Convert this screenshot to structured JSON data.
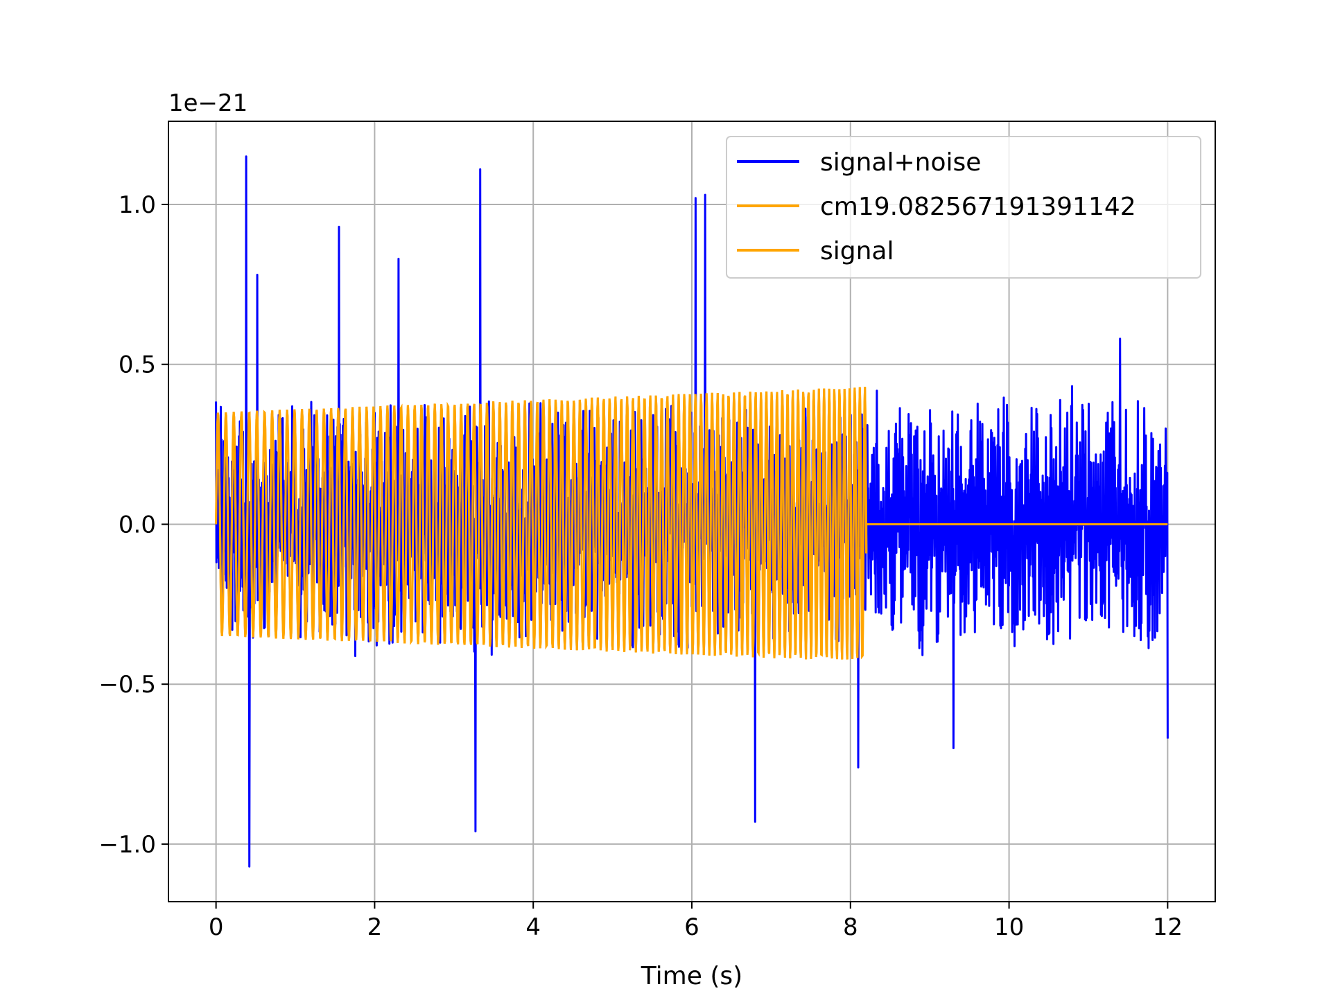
{
  "chart_data": {
    "type": "line",
    "title": "",
    "xlabel": "Time (s)",
    "ylabel": "",
    "offset_label": "1e−21",
    "xlim": [
      -0.6,
      12.6
    ],
    "ylim": [
      -1.18,
      1.26
    ],
    "x_ticks": [
      0,
      2,
      4,
      6,
      8,
      10,
      12
    ],
    "x_tick_labels": [
      "0",
      "2",
      "4",
      "6",
      "8",
      "10",
      "12"
    ],
    "y_ticks": [
      -1.0,
      -0.5,
      0.0,
      0.5,
      1.0
    ],
    "y_tick_labels": [
      "−1.0",
      "−0.5",
      "0.0",
      "0.5",
      "1.0"
    ],
    "grid": true,
    "legend_position": "top-right",
    "series": [
      {
        "name": "signal+noise",
        "color": "#0000ff",
        "x_range": [
          0,
          12
        ],
        "amplitude_envelope": 0.62,
        "peak_points": [
          {
            "x": 0.38,
            "y": 1.15
          },
          {
            "x": 0.42,
            "y": -1.07
          },
          {
            "x": 0.52,
            "y": 0.78
          },
          {
            "x": 1.55,
            "y": 0.93
          },
          {
            "x": 2.3,
            "y": 0.83
          },
          {
            "x": 3.33,
            "y": 1.11
          },
          {
            "x": 3.27,
            "y": -0.96
          },
          {
            "x": 6.05,
            "y": 1.02
          },
          {
            "x": 6.17,
            "y": 1.03
          },
          {
            "x": 6.8,
            "y": -0.93
          },
          {
            "x": 8.1,
            "y": -0.76
          },
          {
            "x": 9.3,
            "y": -0.7
          },
          {
            "x": 11.4,
            "y": 0.58
          },
          {
            "x": 12.0,
            "y": -0.67
          }
        ]
      },
      {
        "name": "cm19.082567191391142",
        "color": "#ffa500",
        "x_range": [
          0,
          8.2
        ],
        "amplitude_start": 0.35,
        "amplitude_end": 0.43
      },
      {
        "name": "signal",
        "color": "#ffa500",
        "x_range": [
          0,
          12
        ],
        "chirp_end": 8.2,
        "amplitude_start": 0.35,
        "amplitude_end": 0.43
      }
    ]
  }
}
